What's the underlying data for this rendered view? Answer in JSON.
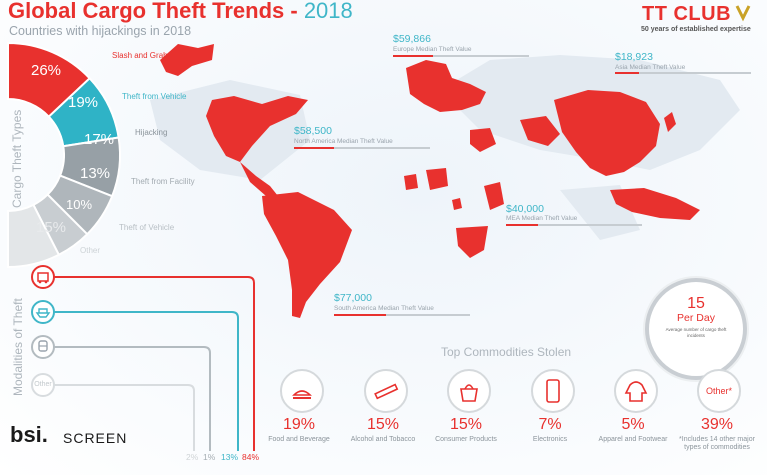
{
  "header": {
    "title_main": "Global Cargo Theft Trends -",
    "title_year": "2018",
    "subtitle": "Countries with hijackings in 2018"
  },
  "logo": {
    "name": "TT CLUB",
    "tagline": "50 years of established expertise"
  },
  "colors": {
    "accent_red": "#e8312e",
    "accent_teal": "#3fb6c8",
    "map_land": "#e3eaf1",
    "grey": "#9aa4ad"
  },
  "regional_values": [
    {
      "region": "europe",
      "value": "$59,866",
      "label": "Europe Median Theft Value"
    },
    {
      "region": "asia",
      "value": "$18,923",
      "label": "Asia Median Theft Value"
    },
    {
      "region": "north-america",
      "value": "$58,500",
      "label": "North America Median Theft Value"
    },
    {
      "region": "mea",
      "value": "$40,000",
      "label": "MEA Median Theft Value"
    },
    {
      "region": "south-america",
      "value": "$77,000",
      "label": "South America Median Theft Value"
    }
  ],
  "theft_types": {
    "heading": "Cargo Theft Types",
    "items": [
      {
        "pct": "26%",
        "label": "Slash and Grab",
        "share": 0.26
      },
      {
        "pct": "19%",
        "label": "Theft from Vehicle",
        "share": 0.19
      },
      {
        "pct": "17%",
        "label": "Hijacking",
        "share": 0.17
      },
      {
        "pct": "13%",
        "label": "Theft from Facility",
        "share": 0.13
      },
      {
        "pct": "10%",
        "label": "Theft of Vehicle",
        "share": 0.1
      },
      {
        "pct": "15%",
        "label": "Other",
        "share": 0.15
      }
    ]
  },
  "modalities": {
    "heading": "Modalities of Theft",
    "other_label": "Other",
    "percentages": [
      "2%",
      "1%",
      "13%",
      "84%"
    ]
  },
  "per_day": {
    "number": "15",
    "label": "Per Day",
    "sub": "Average number of cargo theft incidents"
  },
  "commodities": {
    "heading": "Top Commodities Stolen",
    "items": [
      {
        "pct": "19%",
        "label": "Food and Beverage",
        "icon": "food-icon"
      },
      {
        "pct": "15%",
        "label": "Alcohol and Tobacco",
        "icon": "cigarette-icon"
      },
      {
        "pct": "15%",
        "label": "Consumer Products",
        "icon": "bag-icon"
      },
      {
        "pct": "7%",
        "label": "Electronics",
        "icon": "phone-icon"
      },
      {
        "pct": "5%",
        "label": "Apparel and Footwear",
        "icon": "hoodie-icon"
      },
      {
        "pct": "39%",
        "label": "*Includes 14 other major types of commodities",
        "icon": "other-icon",
        "icon_text": "Other*"
      }
    ]
  },
  "footer": {
    "brand_bsi": "bsi.",
    "brand_screen": "SCREEN"
  }
}
